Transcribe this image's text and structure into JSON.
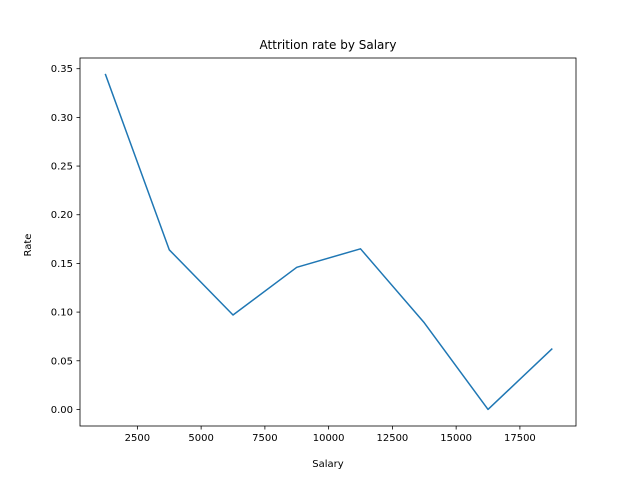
{
  "chart_data": {
    "type": "line",
    "title": "Attrition rate by Salary",
    "xlabel": "Salary",
    "ylabel": "Rate",
    "xlim": [
      250,
      19700
    ],
    "ylim": [
      -0.017,
      0.361
    ],
    "xticks": [
      2500,
      5000,
      7500,
      10000,
      12500,
      15000,
      17500
    ],
    "yticks": [
      0.0,
      0.05,
      0.1,
      0.15,
      0.2,
      0.25,
      0.3,
      0.35
    ],
    "ytick_labels": [
      "0.00",
      "0.05",
      "0.10",
      "0.15",
      "0.20",
      "0.25",
      "0.30",
      "0.35"
    ],
    "grid": false,
    "series": [
      {
        "color": "#1f77b4",
        "x": [
          1250,
          3750,
          6250,
          8750,
          11250,
          13750,
          16250,
          18750
        ],
        "y": [
          0.344,
          0.164,
          0.097,
          0.146,
          0.165,
          0.089,
          0.0,
          0.062
        ]
      }
    ]
  }
}
